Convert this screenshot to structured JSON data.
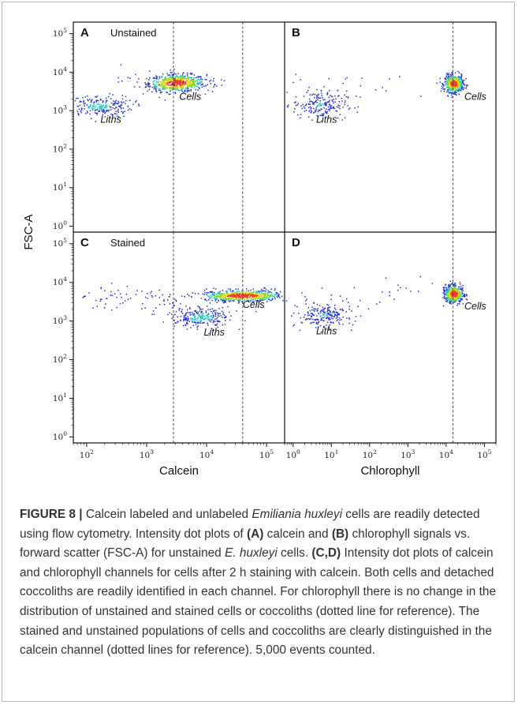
{
  "figure": {
    "y_axis_label": "FSC-A",
    "x_axis_labels": {
      "left": "Calcein",
      "right": "Chlorophyll"
    },
    "y_tick_labels": [
      "10^0",
      "10^1",
      "10^2",
      "10^3",
      "10^4",
      "10^5"
    ],
    "x_tick_labels_left": [
      "10^2",
      "10^3",
      "10^4",
      "10^5"
    ],
    "x_tick_labels_right": [
      "10^0",
      "10^1",
      "10^2",
      "10^3",
      "10^4",
      "10^5"
    ],
    "panels": [
      {
        "letter": "A",
        "condition": "Unstained",
        "annotations": [
          "Cells",
          "Liths"
        ]
      },
      {
        "letter": "B",
        "condition": "",
        "annotations": [
          "Cells",
          "Liths"
        ]
      },
      {
        "letter": "C",
        "condition": "Stained",
        "annotations": [
          "Cells",
          "Liths"
        ]
      },
      {
        "letter": "D",
        "condition": "",
        "annotations": [
          "Cells",
          "Liths"
        ]
      }
    ],
    "colors": {
      "dot_sparse": "#1e2fd6",
      "dot_mid": "#19c6c1",
      "dot_dense": "#7fd62a",
      "dot_peak": "#f2d21d",
      "dot_core": "#e8412b"
    }
  },
  "chart_data": [
    {
      "type": "scatter",
      "panel": "A",
      "title": "Unstained",
      "xlabel": "Calcein",
      "ylabel": "FSC-A",
      "xscale": "log",
      "yscale": "log",
      "xlim": [
        60,
        200000
      ],
      "ylim": [
        0.7,
        200000
      ],
      "reference_lines_x": [
        2800,
        40000
      ],
      "populations": [
        {
          "name": "Cells",
          "x_center": 3000,
          "y_center": 5000
        },
        {
          "name": "Liths",
          "x_center": 150,
          "y_center": 1300
        }
      ],
      "events": 5000
    },
    {
      "type": "scatter",
      "panel": "B",
      "title": "",
      "xlabel": "Chlorophyll",
      "ylabel": "FSC-A",
      "xscale": "log",
      "yscale": "log",
      "xlim": [
        0.6,
        200000
      ],
      "ylim": [
        0.7,
        200000
      ],
      "reference_lines_x": [
        15000
      ],
      "populations": [
        {
          "name": "Cells",
          "x_center": 15000,
          "y_center": 5000
        },
        {
          "name": "Liths",
          "x_center": 6,
          "y_center": 1300
        }
      ],
      "events": 5000
    },
    {
      "type": "scatter",
      "panel": "C",
      "title": "Stained",
      "xlabel": "Calcein",
      "ylabel": "FSC-A",
      "xscale": "log",
      "yscale": "log",
      "xlim": [
        60,
        200000
      ],
      "ylim": [
        0.7,
        200000
      ],
      "reference_lines_x": [
        2800,
        40000
      ],
      "populations": [
        {
          "name": "Cells",
          "x_center": 40000,
          "y_center": 4500
        },
        {
          "name": "Liths",
          "x_center": 9000,
          "y_center": 1200
        }
      ],
      "events": 5000
    },
    {
      "type": "scatter",
      "panel": "D",
      "title": "",
      "xlabel": "Chlorophyll",
      "ylabel": "FSC-A",
      "xscale": "log",
      "yscale": "log",
      "xlim": [
        0.6,
        200000
      ],
      "ylim": [
        0.7,
        200000
      ],
      "reference_lines_x": [
        15000
      ],
      "populations": [
        {
          "name": "Cells",
          "x_center": 15000,
          "y_center": 5000
        },
        {
          "name": "Liths",
          "x_center": 6,
          "y_center": 1300
        }
      ],
      "events": 5000
    }
  ],
  "caption": {
    "figure_label": "FIGURE 8 |",
    "s1": "Calcein labeled and unlabeled",
    "s1_species": "Emiliania huxleyi",
    "s2": "cells are readily detected using flow cytometry. Intensity dot plots of",
    "panel_a": "(A)",
    "s3": "calcein and",
    "panel_b": "(B)",
    "s4": "chlorophyll signals vs. forward scatter (FSC-A) for unstained",
    "s4_species": "E. huxleyi",
    "s5": "cells.",
    "panel_cd": "(C,D)",
    "s6": "Intensity dot plots of calcein and chlorophyll channels for cells after 2 h staining with calcein. Both cells and detached coccoliths are readily identified in each channel. For chlorophyll there is no change in the distribution of unstained and stained cells or coccoliths (dotted line for reference). The stained and unstained populations of cells and coccoliths are clearly distinguished in the calcein channel (dotted lines for reference). 5,000 events counted."
  }
}
